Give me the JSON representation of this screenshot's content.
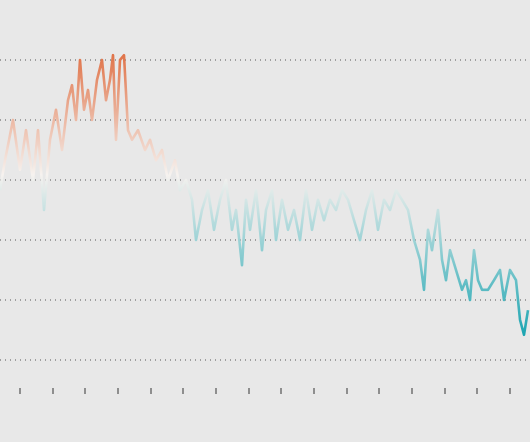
{
  "chart_data": {
    "type": "line",
    "x": [
      0,
      5,
      13,
      20,
      26,
      33,
      38,
      44,
      50,
      56,
      62,
      68,
      72,
      76,
      80,
      84,
      88,
      92,
      97,
      102,
      106,
      110,
      113,
      116,
      120,
      124,
      128,
      132,
      138,
      145,
      150,
      156,
      162,
      168,
      175,
      180,
      186,
      192,
      196,
      202,
      208,
      214,
      220,
      226,
      232,
      236,
      242,
      246,
      250,
      256,
      262,
      266,
      272,
      276,
      282,
      288,
      294,
      300,
      306,
      312,
      318,
      324,
      330,
      336,
      342,
      348,
      354,
      360,
      366,
      372,
      378,
      384,
      390,
      396,
      402,
      408,
      414,
      420,
      424,
      428,
      432,
      438,
      442,
      446,
      450,
      456,
      462,
      466,
      470,
      474,
      478,
      482,
      488,
      494,
      500,
      504,
      510,
      516,
      520,
      524,
      528
    ],
    "values": [
      2.83,
      3.33,
      4,
      3.17,
      3.83,
      3,
      3.83,
      2.5,
      3.67,
      4.17,
      3.5,
      4.33,
      4.58,
      4,
      5,
      4.17,
      4.5,
      4,
      4.67,
      5,
      4.33,
      4.67,
      5.08,
      3.67,
      5,
      5.08,
      3.83,
      3.67,
      3.83,
      3.5,
      3.67,
      3.33,
      3.5,
      3,
      3.33,
      2.83,
      3,
      2.67,
      2,
      2.5,
      2.83,
      2.17,
      2.67,
      3,
      2.17,
      2.5,
      1.58,
      2.67,
      2.17,
      2.83,
      1.83,
      2.5,
      2.83,
      2,
      2.67,
      2.17,
      2.5,
      2,
      2.83,
      2.17,
      2.67,
      2.33,
      2.67,
      2.5,
      2.83,
      2.67,
      2.33,
      2,
      2.5,
      2.83,
      2.17,
      2.67,
      2.5,
      2.83,
      2.67,
      2.5,
      2,
      1.67,
      1.17,
      2.17,
      1.83,
      2.5,
      1.67,
      1.33,
      1.83,
      1.5,
      1.17,
      1.33,
      1,
      1.83,
      1.33,
      1.17,
      1.17,
      1.33,
      1.5,
      1,
      1.5,
      1.33,
      0.67,
      0.42,
      0.83
    ],
    "colors": [
      "#e0744a",
      "#f6f2ef",
      "#16a3b0"
    ],
    "xlim": [
      0,
      530
    ],
    "xticks": [
      20,
      53,
      85,
      118,
      151,
      183,
      216,
      249,
      281,
      314,
      347,
      379,
      412,
      445,
      477,
      510
    ],
    "ylim": [
      0,
      5
    ],
    "yticks": [
      0,
      1,
      2,
      3,
      4,
      5
    ],
    "grid": true
  }
}
